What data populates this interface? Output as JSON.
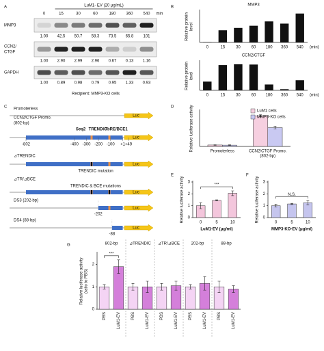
{
  "blot": {
    "panel": "A",
    "treatment": "LuM1- EV (20 μg/mL)",
    "lanes": [
      "0",
      "15",
      "30",
      "60",
      "180",
      "360",
      "540"
    ],
    "unit": "min",
    "rows": [
      {
        "name": [
          "MMP3"
        ],
        "values": [
          "1.00",
          "42.5",
          "50.7",
          "58.3",
          "73.5",
          "65.8",
          "101"
        ]
      },
      {
        "name": [
          "CCN2/",
          "CTGF"
        ],
        "values": [
          "1.00",
          "2.90",
          "2.99",
          "2.96",
          "0.67",
          "0.13",
          "1.16"
        ]
      },
      {
        "name": [
          "GAPDH"
        ],
        "values": [
          "1.00",
          "0.89",
          "0.98",
          "0.79",
          "0.95",
          "1.33",
          "0.93"
        ]
      }
    ],
    "recipient": "Recipient: MMP3-KO cells"
  },
  "constructs": {
    "panel": "C",
    "items": [
      {
        "label": "Promoterless"
      },
      {
        "label": "CCN2/CTGF Promo.",
        "sublabel": "(802-bp)"
      },
      {
        "label": "⊿TRENDIC",
        "note": "TRENDIC mutation"
      },
      {
        "label": "⊿TR/⊿BCE",
        "note": "TRENDIC & BCE mutations"
      },
      {
        "label": "DS3 (202-bp)",
        "start": "-202"
      },
      {
        "label": "DS4 (88-bp)",
        "start": "-88"
      }
    ],
    "elements": [
      "Seq2",
      "TRENDIC",
      "TbRE/BCE1"
    ],
    "positions": [
      "-802",
      "-400",
      "-300",
      "-200",
      "-100",
      "+1",
      "+49"
    ],
    "reporter": "Luc"
  },
  "chart_data": [
    {
      "type": "bar",
      "panel": "B",
      "title": "MMP3",
      "ylabel": [
        "Relative protein",
        "level"
      ],
      "categories": [
        "0",
        "15",
        "30",
        "60",
        "180",
        "360",
        "540"
      ],
      "xunit": "(min)",
      "values": [
        1,
        42.5,
        50.7,
        58.3,
        73.5,
        65.8,
        101
      ],
      "color": "#111111",
      "ylim": [
        0,
        110
      ]
    },
    {
      "type": "bar",
      "title": "CCN2/CTGF",
      "ylabel": [
        "Relative protein",
        "level"
      ],
      "categories": [
        "0",
        "15",
        "30",
        "60",
        "180",
        "360",
        "540"
      ],
      "xunit": "(min)",
      "values": [
        1,
        2.9,
        2.99,
        2.96,
        0.67,
        0.13,
        1.16
      ],
      "color": "#111111",
      "ylim": [
        0,
        3.3
      ]
    },
    {
      "type": "bar",
      "panel": "D",
      "ylabel": [
        "Relative luciferase activity"
      ],
      "categories": [
        [
          "Promoterless"
        ],
        [
          "CCN2/CTGF Promo.",
          "(802-bp)"
        ]
      ],
      "series": [
        {
          "name": "LuM1 cells",
          "color": "#f6cfe0",
          "values": [
            1.0,
            21.5
          ],
          "errors": [
            0.2,
            0.8
          ]
        },
        {
          "name": "MMP3-KO cells",
          "color": "#c9c9f2",
          "values": [
            0.9,
            13.2
          ],
          "errors": [
            0.2,
            1.0
          ]
        }
      ],
      "ylim": [
        0,
        25
      ],
      "legend": "upper right"
    },
    {
      "type": "bar",
      "panel": "E",
      "ylabel": [
        "Relative luciferase activity"
      ],
      "xlabel": "LuM1-EV (μg/ml)",
      "categories": [
        "0",
        "5",
        "10"
      ],
      "values": [
        1.0,
        1.45,
        2.05
      ],
      "errors": [
        0.25,
        0.05,
        0.2
      ],
      "color": "#f3c6dc",
      "ylim": [
        0,
        3
      ],
      "yticks": [
        0,
        1,
        2,
        3
      ],
      "annotation": "***"
    },
    {
      "type": "bar",
      "panel": "F",
      "ylabel": [
        "Relative luciferase activity"
      ],
      "xlabel": "MMP3-KO-EV (μg/ml)",
      "categories": [
        "0",
        "5",
        "10"
      ],
      "values": [
        1.0,
        1.15,
        1.25
      ],
      "errors": [
        0.12,
        0.05,
        0.18
      ],
      "color": "#c5c5ee",
      "ylim": [
        0,
        3
      ],
      "yticks": [
        0,
        1,
        2,
        3
      ],
      "annotation": "N.S."
    },
    {
      "type": "bar",
      "panel": "G",
      "ylabel": [
        "Relative luciferase activity",
        "(ratio to PBS)"
      ],
      "groups": [
        "802-bp",
        "⊿TRENDIC",
        "⊿TR/⊿BCE",
        "202-bp",
        "88-bp"
      ],
      "categories": [
        "PBS",
        "LuM1-EV",
        "PBS",
        "LuM1-EV",
        "PBS",
        "LuM1-EV",
        "PBS",
        "LuM1-EV",
        "PBS",
        "LuM1-EV"
      ],
      "values": [
        1.0,
        1.9,
        1.0,
        1.0,
        1.0,
        1.05,
        1.0,
        1.15,
        1.0,
        0.9
      ],
      "errors": [
        0.1,
        0.3,
        0.15,
        0.25,
        0.15,
        0.2,
        0.1,
        0.3,
        0.25,
        0.15
      ],
      "colors": [
        "#f4d4f4",
        "#d47fda"
      ],
      "ylim": [
        0,
        2.5
      ],
      "yticks": [
        0,
        1,
        2
      ],
      "annotation": "***"
    }
  ]
}
